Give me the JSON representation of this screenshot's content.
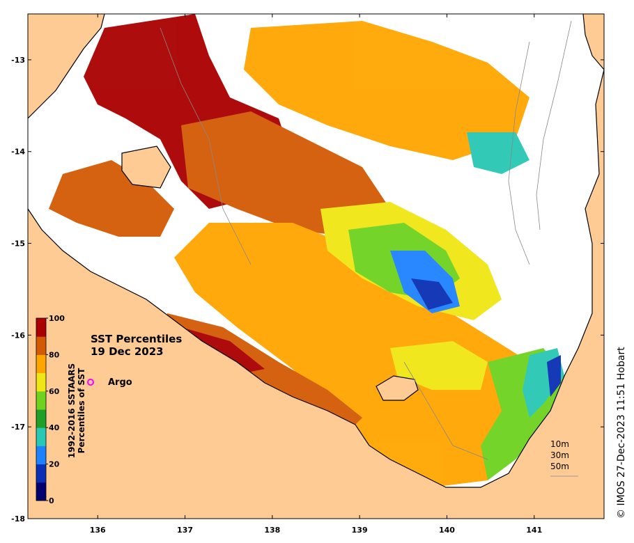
{
  "map": {
    "title_line1": "SST Percentiles",
    "title_line2": "19 Dec 2023",
    "legend_item": "Argo",
    "credit": "© IMOS 27-Dec-2023 11:51 Hobart",
    "x_ticks": [
      "136",
      "137",
      "138",
      "139",
      "140",
      "141"
    ],
    "y_ticks": [
      "-13",
      "-14",
      "-15",
      "-16",
      "-17",
      "-18"
    ],
    "lon_range": [
      135.2,
      141.8
    ],
    "lat_range": [
      -12.5,
      -18.0
    ],
    "depth_labels": [
      "10m",
      "30m",
      "50m"
    ]
  },
  "colorbar": {
    "title_line1": "1992-2016 SSTAARS",
    "title_line2": "Percentiles of SST",
    "tick_labels": [
      "100",
      "80",
      "60",
      "40",
      "20",
      "0"
    ],
    "colors": [
      "#00006e",
      "#0a2fb4",
      "#1e82ff",
      "#28c8b4",
      "#1ea028",
      "#6ed21e",
      "#f0e614",
      "#ffa500",
      "#d25a05",
      "#aa0000"
    ]
  },
  "colors": {
    "ocean_sea": "#ffffff",
    "land": "#fecb95",
    "argo_marker": "#ff00ff"
  }
}
